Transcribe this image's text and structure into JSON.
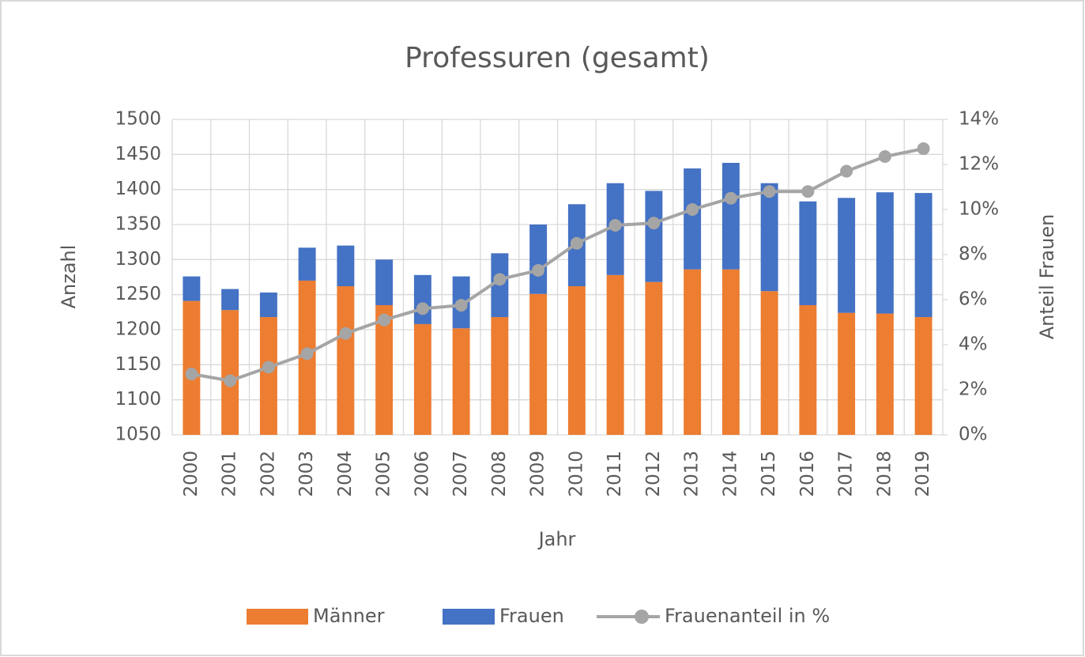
{
  "chart_data": {
    "type": "bar",
    "stacked": true,
    "title": "Professuren (gesamt)",
    "x_label": "Jahr",
    "y_label": "Anzahl",
    "y2_label": "Anteil Frauen",
    "categories": [
      "2000",
      "2001",
      "2002",
      "2003",
      "2004",
      "2005",
      "2006",
      "2007",
      "2008",
      "2009",
      "2010",
      "2011",
      "2012",
      "2013",
      "2014",
      "2015",
      "2016",
      "2017",
      "2018",
      "2019"
    ],
    "series": [
      {
        "name": "Männer",
        "type": "bar",
        "color": "#ed7d31",
        "values": [
          1241,
          1228,
          1218,
          1270,
          1262,
          1235,
          1208,
          1202,
          1218,
          1251,
          1262,
          1278,
          1268,
          1286,
          1286,
          1255,
          1235,
          1224,
          1223,
          1218
        ]
      },
      {
        "name": "Frauen",
        "type": "bar",
        "color": "#4472c4",
        "values": [
          35,
          30,
          35,
          47,
          58,
          65,
          70,
          74,
          91,
          99,
          117,
          131,
          130,
          144,
          152,
          154,
          148,
          164,
          173,
          177
        ]
      },
      {
        "name": "Frauenanteil in %",
        "type": "line",
        "axis": "y2",
        "color": "#a5a5a5",
        "values": [
          2.7,
          2.4,
          3.0,
          3.6,
          4.5,
          5.1,
          5.6,
          5.75,
          6.9,
          7.3,
          8.5,
          9.3,
          9.4,
          10.0,
          10.5,
          10.8,
          10.8,
          11.7,
          12.35,
          12.7
        ]
      }
    ],
    "ylim": [
      1050,
      1500
    ],
    "yticks": [
      1050,
      1100,
      1150,
      1200,
      1250,
      1300,
      1350,
      1400,
      1450,
      1500
    ],
    "y2lim": [
      0,
      14
    ],
    "y2ticks": [
      {
        "value": 0,
        "label": "0%"
      },
      {
        "value": 2,
        "label": "2%"
      },
      {
        "value": 4,
        "label": "4%"
      },
      {
        "value": 6,
        "label": "6%"
      },
      {
        "value": 8,
        "label": "8%"
      },
      {
        "value": 10,
        "label": "10%"
      },
      {
        "value": 12,
        "label": "12%"
      },
      {
        "value": 14,
        "label": "14%"
      }
    ],
    "grid": true,
    "legend": "bottom"
  }
}
